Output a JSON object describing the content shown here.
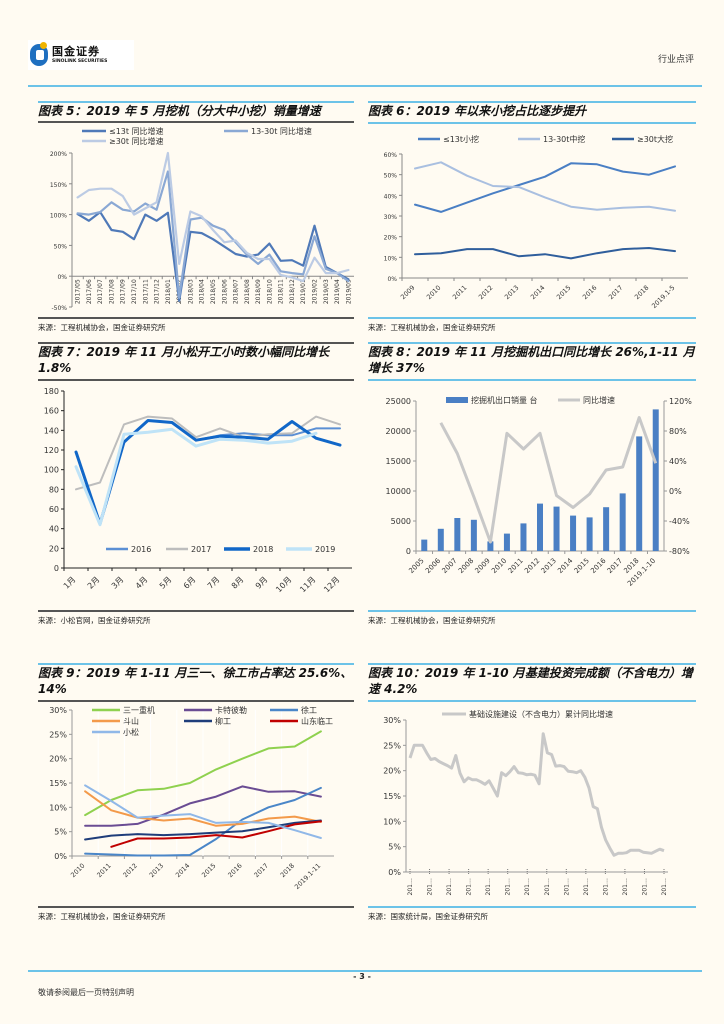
{
  "header": {
    "logo_cn": "国金证券",
    "logo_en": "SINOLINK SECURITIES",
    "doc_type": "行业点评"
  },
  "footer": {
    "page_number": "- 3 -",
    "note": "敬请参阅最后一页特别声明"
  },
  "colors": {
    "accent_rule": "#6cc3e8",
    "dark_rule": "#555555"
  },
  "panels": [
    {
      "id": "fig5",
      "title": "图表 5：2019 年 5 月挖机（分大中小挖）销量增速",
      "source": "来源：工程机械协会，国金证券研究所"
    },
    {
      "id": "fig6",
      "title": "图表 6：2019 年以来小挖占比逐步提升",
      "source": "来源：工程机械协会，国金证券研究所"
    },
    {
      "id": "fig7",
      "title": "图表 7：2019 年 11 月小松开工小时数小幅同比增长 1.8%",
      "source": "来源：小松官网，国金证券研究所"
    },
    {
      "id": "fig8",
      "title": "图表 8：2019 年 11 月挖掘机出口同比增长 26%,1-11 月增长 37%",
      "source": "来源：工程机械协会，国金证券研究所"
    },
    {
      "id": "fig9",
      "title": "图表 9：2019 年 1-11 月三一、徐工市占率达 25.6%、14%",
      "source": "来源：工程机械协会，国金证券研究所"
    },
    {
      "id": "fig10",
      "title": "图表 10：2019 年 1-10 月基建投资完成额（不含电力）增速 4.2%",
      "source": "来源：国家统计局，国金证券研究所"
    }
  ],
  "chart_data": [
    {
      "id": "fig5",
      "type": "line",
      "title": "2019年5月挖机（分大中小挖）销量增速",
      "xlabel": "",
      "ylabel": "",
      "ylim": [
        -50,
        200
      ],
      "yticks": [
        "-50%",
        "0%",
        "50%",
        "100%",
        "150%",
        "200%"
      ],
      "ytick_values": [
        -50,
        0,
        50,
        100,
        150,
        200
      ],
      "x": [
        "2017/05",
        "2017/06",
        "2017/07",
        "2017/08",
        "2017/09",
        "2017/10",
        "2017/11",
        "2017/12",
        "2018/01",
        "2018/02",
        "2018/03",
        "2018/04",
        "2018/05",
        "2018/06",
        "2018/07",
        "2018/08",
        "2018/09",
        "2018/10",
        "2018/11",
        "2018/12",
        "2019/01",
        "2019/02",
        "2019/03",
        "2019/04",
        "2019/05"
      ],
      "legend": "top",
      "series": [
        {
          "name": "≤13t 同比增速",
          "color": "#4f79b8",
          "values": [
            101,
            90,
            104,
            75,
            72,
            60,
            100,
            90,
            103,
            -40,
            72,
            70,
            60,
            48,
            36,
            32,
            35,
            53,
            25,
            26,
            17,
            82,
            15,
            5,
            -5
          ]
        },
        {
          "name": "13-30t 同比增速",
          "color": "#8aa8d4",
          "values": [
            102,
            100,
            104,
            120,
            108,
            105,
            118,
            108,
            170,
            -35,
            92,
            95,
            82,
            75,
            55,
            35,
            20,
            35,
            8,
            5,
            3,
            65,
            12,
            5,
            -8
          ]
        },
        {
          "name": "≥30t 同比增速",
          "color": "#bccbe4",
          "values": [
            128,
            140,
            142,
            142,
            130,
            100,
            110,
            120,
            200,
            20,
            105,
            97,
            75,
            55,
            58,
            38,
            28,
            28,
            2,
            -2,
            -8,
            30,
            5,
            5,
            10
          ]
        }
      ]
    },
    {
      "id": "fig6",
      "type": "line",
      "title": "2019年以来小挖占比逐步提升",
      "ylim": [
        0,
        60
      ],
      "yticks": [
        "0%",
        "10%",
        "20%",
        "30%",
        "40%",
        "50%",
        "60%"
      ],
      "ytick_values": [
        0,
        10,
        20,
        30,
        40,
        50,
        60
      ],
      "x": [
        "2009",
        "2010",
        "2011",
        "2012",
        "2013",
        "2014",
        "2015",
        "2016",
        "2017",
        "2018",
        "2019.1-5"
      ],
      "legend": "top",
      "series": [
        {
          "name": "≤13t小挖",
          "color": "#4a7fc4",
          "values": [
            35.5,
            32,
            36.5,
            41,
            45,
            49,
            55.5,
            55,
            51.5,
            50,
            54
          ]
        },
        {
          "name": "13-30t中挖",
          "color": "#a9bfe0",
          "values": [
            53,
            56,
            49.5,
            44.5,
            44,
            39,
            34.5,
            33,
            34,
            34.5,
            32.5
          ]
        },
        {
          "name": "≥30t大挖",
          "color": "#2f5e9c",
          "values": [
            11.5,
            12,
            14,
            14,
            10.5,
            11.5,
            9.5,
            12,
            14,
            14.5,
            13
          ]
        }
      ]
    },
    {
      "id": "fig7",
      "type": "line",
      "title": "2019年11月小松开工小时数小幅同比增长1.8%",
      "ylim": [
        0,
        180
      ],
      "yticks": [
        "0",
        "20",
        "40",
        "60",
        "80",
        "100",
        "120",
        "140",
        "160",
        "180"
      ],
      "ytick_values": [
        0,
        20,
        40,
        60,
        80,
        100,
        120,
        140,
        160,
        180
      ],
      "x": [
        "1月",
        "2月",
        "3月",
        "4月",
        "5月",
        "6月",
        "7月",
        "8月",
        "9月",
        "10月",
        "11月",
        "12月"
      ],
      "legend": "bottom",
      "series": [
        {
          "name": "2016",
          "color": "#5b8fd4",
          "values": [
            null,
            null,
            null,
            null,
            null,
            130,
            135,
            137,
            135,
            135,
            142,
            142
          ]
        },
        {
          "name": "2017",
          "color": "#bdbdbd",
          "values": [
            80,
            87,
            146,
            154,
            152,
            133,
            142,
            133,
            136,
            137,
            154,
            146
          ]
        },
        {
          "name": "2018",
          "color": "#1167c8",
          "values": [
            118,
            45,
            128,
            150,
            148,
            130,
            134,
            133,
            131,
            149,
            132,
            125
          ]
        },
        {
          "name": "2019",
          "color": "#bfe3f7",
          "values": [
            103,
            44,
            136,
            138,
            141,
            124,
            131,
            130,
            127,
            129,
            137,
            null
          ]
        }
      ]
    },
    {
      "id": "fig8",
      "type": "bar",
      "title": "2019年11月挖掘机出口同比增长26%,1-11月增长37%",
      "categories": [
        "2005",
        "2006",
        "2007",
        "2008",
        "2009",
        "2010",
        "2011",
        "2012",
        "2013",
        "2014",
        "2015",
        "2016",
        "2017",
        "2018",
        "2019.1-10"
      ],
      "ylim": [
        0,
        25000
      ],
      "yticks": [
        "0",
        "5000",
        "10000",
        "15000",
        "20000",
        "25000"
      ],
      "ytick_values": [
        0,
        5000,
        10000,
        15000,
        20000,
        25000
      ],
      "y2lim": [
        -80,
        120
      ],
      "y2ticks": [
        "-80%",
        "-40%",
        "0%",
        "40%",
        "80%",
        "120%"
      ],
      "y2tick_values": [
        -80,
        -40,
        0,
        40,
        80,
        120
      ],
      "legend": "top",
      "series": [
        {
          "name": "挖掘机出口销量 台",
          "type": "bar",
          "axis": "left",
          "color": "#4a7fc4",
          "values": [
            1900,
            3700,
            5500,
            5200,
            1600,
            2900,
            4600,
            7900,
            7400,
            5900,
            5600,
            7300,
            9600,
            19100,
            23600
          ]
        },
        {
          "name": "同比增速",
          "type": "line",
          "axis": "right",
          "color": "#c8c8c8",
          "values": [
            null,
            91,
            50,
            -8,
            -68,
            77,
            56,
            77,
            -6,
            -22,
            -4,
            28,
            32,
            98,
            37
          ]
        }
      ]
    },
    {
      "id": "fig9",
      "type": "line",
      "title": "2019年1-11月三一、徐工市占率达25.6%、14%",
      "ylim": [
        0,
        30
      ],
      "yticks": [
        "0%",
        "5%",
        "10%",
        "15%",
        "20%",
        "25%",
        "30%"
      ],
      "ytick_values": [
        0,
        5,
        10,
        15,
        20,
        25,
        30
      ],
      "x": [
        "2010",
        "2011",
        "2012",
        "2013",
        "2014",
        "2015",
        "2016",
        "2017",
        "2018",
        "2019.1-11"
      ],
      "legend": "top",
      "series": [
        {
          "name": "三一重机",
          "color": "#8fd14f",
          "values": [
            8.4,
            11.5,
            13.5,
            13.8,
            15,
            17.8,
            20,
            22.1,
            22.5,
            25.6
          ]
        },
        {
          "name": "卡特彼勒",
          "color": "#6a4c93",
          "values": [
            6.2,
            6.2,
            6.6,
            8.5,
            10.8,
            12.2,
            14.3,
            13.2,
            13.3,
            12.2
          ]
        },
        {
          "name": "徐工",
          "color": "#4a86c8",
          "values": [
            0.5,
            0.3,
            0.1,
            0.1,
            0.2,
            3.5,
            7.5,
            10,
            11.5,
            14
          ]
        },
        {
          "name": "斗山",
          "color": "#f39a4a",
          "values": [
            13.3,
            9.4,
            7.9,
            7.3,
            7.7,
            6.2,
            6.6,
            7.7,
            8.1,
            7
          ]
        },
        {
          "name": "柳工",
          "color": "#1f3d7a",
          "values": [
            3.4,
            4.2,
            4.5,
            4.3,
            4.5,
            4.8,
            5.1,
            5.9,
            6.8,
            7.3
          ]
        },
        {
          "name": "山东临工",
          "color": "#c00000",
          "values": [
            null,
            1.9,
            3.6,
            3.6,
            3.8,
            4.3,
            3.8,
            5.1,
            6.5,
            7.1
          ]
        },
        {
          "name": "小松",
          "color": "#90b8e8",
          "values": [
            14.5,
            11.3,
            7.9,
            8.3,
            8.6,
            6.8,
            7,
            6.8,
            5.3,
            3.7
          ]
        }
      ]
    },
    {
      "id": "fig10",
      "type": "line",
      "title": "2019年1-10月基建投资完成额（不含电力）增速4.2%",
      "ylim": [
        0,
        30
      ],
      "yticks": [
        "0%",
        "5%",
        "10%",
        "15%",
        "20%",
        "25%",
        "30%"
      ],
      "ytick_values": [
        0,
        5,
        10,
        15,
        20,
        25,
        30
      ],
      "xtick_label": "201…",
      "xtick_count": 14,
      "legend": "top",
      "series": [
        {
          "name": "基础设施建设（不含电力）累计同比增速",
          "color": "#c8c8c8",
          "values": [
            22.5,
            25,
            25,
            25,
            23.5,
            22.2,
            22.4,
            21.8,
            21.4,
            21,
            20.5,
            23,
            19.5,
            17.8,
            18.6,
            18.2,
            18.2,
            17.8,
            17.3,
            18,
            16.5,
            15,
            19.6,
            19,
            19.8,
            20.8,
            19.6,
            19.5,
            19.2,
            19.3,
            19.1,
            17.4,
            27.3,
            23.5,
            23.2,
            20.9,
            21,
            20.8,
            19.9,
            19.8,
            19.6,
            20,
            18.7,
            16.6,
            12.9,
            12.5,
            8.8,
            6.3,
            4.7,
            3.3,
            3.7,
            3.7,
            3.8,
            4.3,
            4.3,
            4.3,
            3.9,
            3.8,
            3.7,
            4.1,
            4.5,
            4.2
          ]
        }
      ]
    }
  ]
}
